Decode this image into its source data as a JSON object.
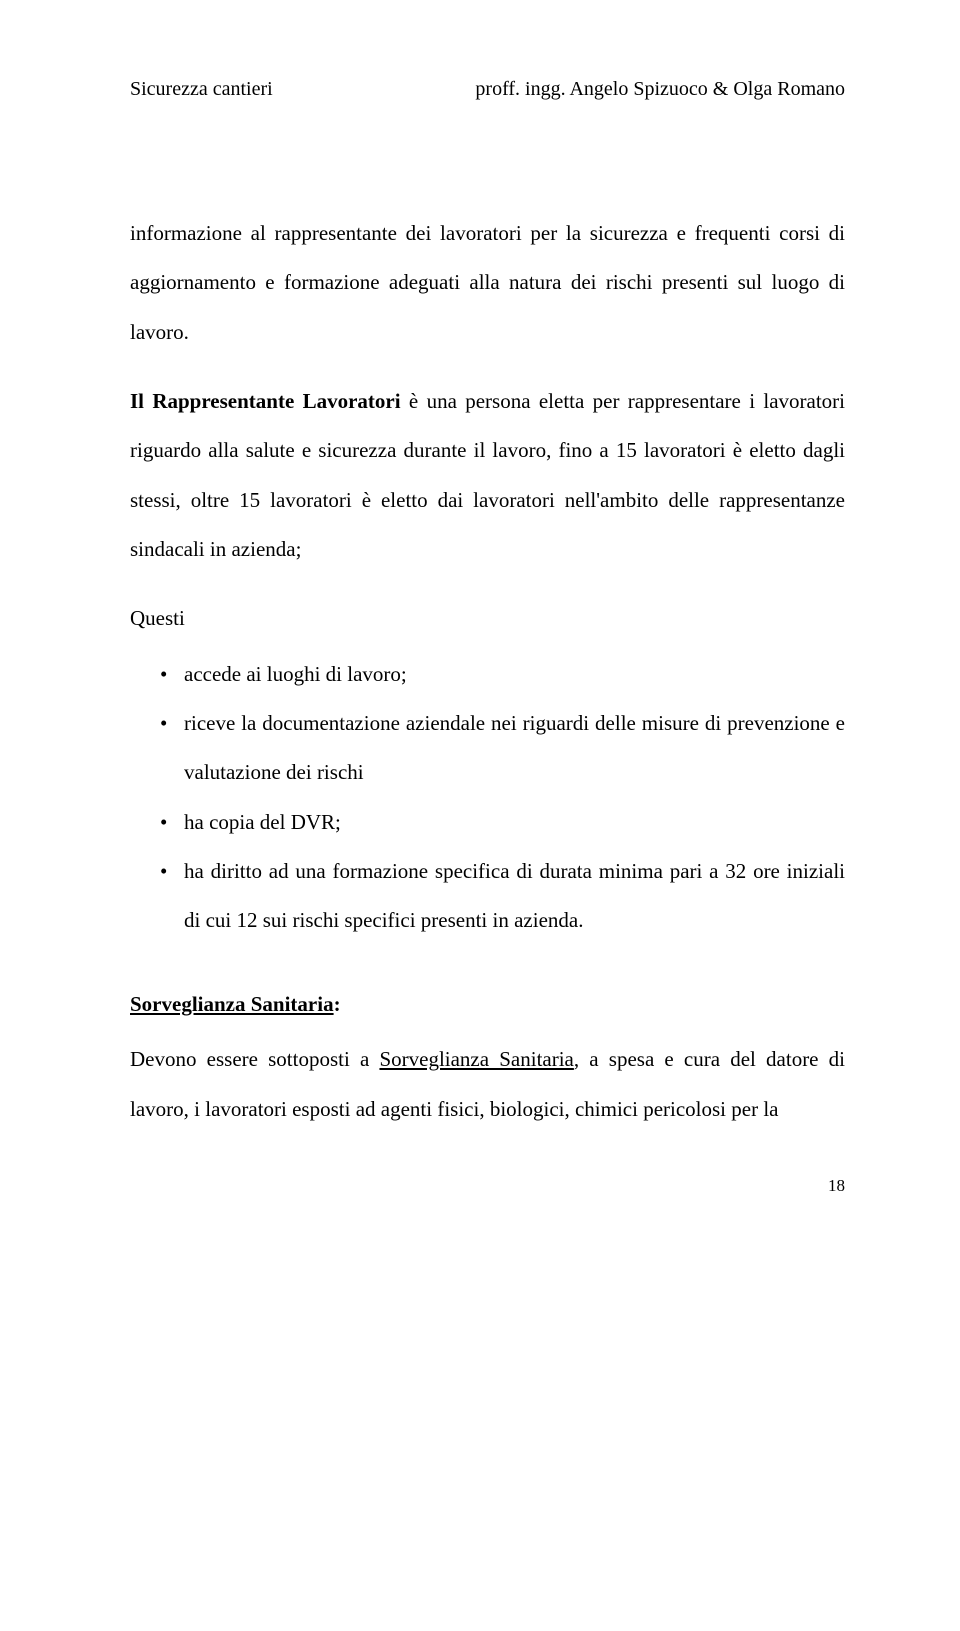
{
  "header": {
    "left": "Sicurezza cantieri",
    "right": "proff. ingg. Angelo Spizuoco & Olga Romano"
  },
  "para1": {
    "pre": "informazione al rappresentante dei lavoratori per la sicurezza e frequenti corsi di aggiornamento e formazione adeguati alla natura dei rischi presenti sul luogo di lavoro."
  },
  "para2": {
    "lead": "Il Rappresentante Lavoratori",
    "rest": " è una persona eletta per rappresentare i lavoratori riguardo alla salute e sicurezza durante il lavoro, fino a 15 lavoratori è eletto dagli stessi, oltre 15 lavoratori è eletto dai lavoratori nell'ambito delle rappresentanze sindacali in azienda;"
  },
  "questi": "Questi",
  "bullets": [
    "accede ai luoghi di lavoro;",
    "riceve la documentazione aziendale nei riguardi delle misure di prevenzione e valutazione dei rischi",
    "ha copia del DVR;",
    "ha diritto ad una formazione specifica di durata minima pari a 32 ore iniziali di cui 12 sui rischi specifici presenti in azienda."
  ],
  "section": {
    "title": "Sorveglianza Sanitaria",
    "colon": ":"
  },
  "para3": {
    "pre": "Devono essere sottoposti a ",
    "under": "Sorveglianza Sanitaria",
    "post": ", a spesa e cura del datore di lavoro, i lavoratori esposti ad agenti fisici, biologici, chimici pericolosi per la"
  },
  "pageNumber": "18"
}
